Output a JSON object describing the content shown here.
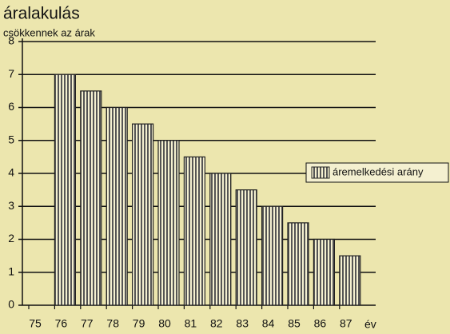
{
  "chart_data": {
    "type": "bar",
    "title": "áralakulás",
    "subtitle": "csökkennek az árak",
    "x_label": "év",
    "categories": [
      "75",
      "76",
      "77",
      "78",
      "79",
      "80",
      "81",
      "82",
      "83",
      "84",
      "85",
      "86",
      "87"
    ],
    "series": [
      {
        "name": "áremelkedési arány",
        "color": "#222222",
        "values": [
          null,
          7,
          6.5,
          6,
          5.5,
          5,
          4.5,
          4,
          3.5,
          3,
          2.5,
          2,
          1.5
        ]
      }
    ],
    "ylim": [
      0,
      8
    ],
    "yticks": [
      0,
      1,
      2,
      3,
      4,
      5,
      6,
      7,
      8
    ],
    "grid": true,
    "legend": "right"
  }
}
